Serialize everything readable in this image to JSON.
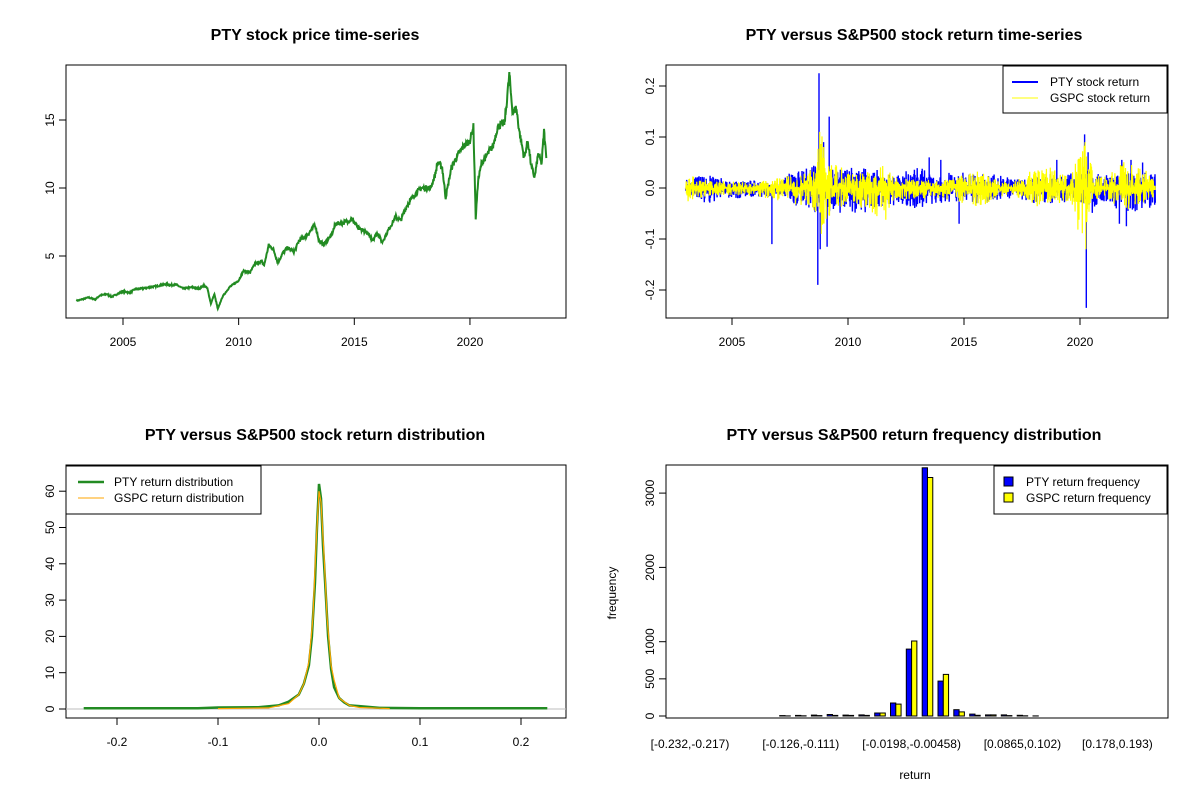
{
  "chart_data": [
    {
      "type": "line",
      "title": "PTY stock price time-series",
      "xlabel": "",
      "ylabel": "",
      "xlim": [
        2002.1,
        2023.9
      ],
      "ylim": [
        0.6,
        18.9
      ],
      "xticks": [
        "2005",
        "2010",
        "2015",
        "2020"
      ],
      "yticks": [
        "5",
        "10",
        "15"
      ],
      "grid": false,
      "color": "#228B22",
      "series": [
        {
          "values": [
            [
              2003.0,
              1.7
            ],
            [
              2003.5,
              1.95
            ],
            [
              2003.8,
              1.8
            ],
            [
              2004.0,
              2.1
            ],
            [
              2004.3,
              2.2
            ],
            [
              2004.5,
              2.0
            ],
            [
              2005.0,
              2.4
            ],
            [
              2005.3,
              2.3
            ],
            [
              2005.5,
              2.55
            ],
            [
              2006.0,
              2.65
            ],
            [
              2006.5,
              2.8
            ],
            [
              2006.9,
              2.95
            ],
            [
              2007.0,
              2.85
            ],
            [
              2007.3,
              2.9
            ],
            [
              2007.6,
              2.6
            ],
            [
              2008.0,
              2.7
            ],
            [
              2008.3,
              2.6
            ],
            [
              2008.5,
              2.85
            ],
            [
              2008.65,
              2.6
            ],
            [
              2008.8,
              1.5
            ],
            [
              2008.95,
              2.2
            ],
            [
              2009.1,
              1.1
            ],
            [
              2009.3,
              2.0
            ],
            [
              2009.6,
              2.7
            ],
            [
              2010.0,
              3.2
            ],
            [
              2010.2,
              3.9
            ],
            [
              2010.5,
              3.8
            ],
            [
              2010.7,
              4.4
            ],
            [
              2011.0,
              4.6
            ],
            [
              2011.1,
              4.3
            ],
            [
              2011.3,
              5.8
            ],
            [
              2011.5,
              5.5
            ],
            [
              2011.7,
              4.5
            ],
            [
              2011.9,
              5.2
            ],
            [
              2012.1,
              5.6
            ],
            [
              2012.4,
              5.3
            ],
            [
              2012.6,
              6.1
            ],
            [
              2013.0,
              6.6
            ],
            [
              2013.3,
              7.3
            ],
            [
              2013.5,
              6.0
            ],
            [
              2013.7,
              5.9
            ],
            [
              2014.0,
              6.5
            ],
            [
              2014.2,
              7.4
            ],
            [
              2014.5,
              7.4
            ],
            [
              2014.9,
              7.7
            ],
            [
              2015.2,
              7.0
            ],
            [
              2015.5,
              6.8
            ],
            [
              2015.8,
              6.2
            ],
            [
              2016.0,
              6.7
            ],
            [
              2016.2,
              6.0
            ],
            [
              2016.5,
              7.0
            ],
            [
              2016.8,
              7.9
            ],
            [
              2017.0,
              7.6
            ],
            [
              2017.3,
              8.8
            ],
            [
              2017.6,
              9.5
            ],
            [
              2017.9,
              10.0
            ],
            [
              2018.3,
              10.0
            ],
            [
              2018.5,
              11.0
            ],
            [
              2018.6,
              11.9
            ],
            [
              2018.8,
              11.5
            ],
            [
              2018.95,
              9.3
            ],
            [
              2019.2,
              11.5
            ],
            [
              2019.5,
              12.5
            ],
            [
              2019.7,
              13.0
            ],
            [
              2020.0,
              13.5
            ],
            [
              2020.15,
              14.5
            ],
            [
              2020.25,
              7.8
            ],
            [
              2020.35,
              10.5
            ],
            [
              2020.5,
              11.8
            ],
            [
              2020.8,
              12.6
            ],
            [
              2021.0,
              13.1
            ],
            [
              2021.2,
              14.5
            ],
            [
              2021.5,
              14.8
            ],
            [
              2021.6,
              16.5
            ],
            [
              2021.7,
              18.3
            ],
            [
              2021.85,
              15.5
            ],
            [
              2022.0,
              15.9
            ],
            [
              2022.15,
              14.0
            ],
            [
              2022.35,
              12.2
            ],
            [
              2022.5,
              13.5
            ],
            [
              2022.65,
              11.6
            ],
            [
              2022.8,
              10.8
            ],
            [
              2022.95,
              12.5
            ],
            [
              2023.1,
              11.8
            ],
            [
              2023.2,
              14.2
            ],
            [
              2023.3,
              12.2
            ]
          ]
        }
      ]
    },
    {
      "type": "line",
      "title": "PTY versus S&P500 stock return time-series",
      "xlabel": "",
      "ylabel": "",
      "xlim": [
        2002.1,
        2023.9
      ],
      "ylim": [
        -0.255,
        0.24
      ],
      "xticks": [
        "2005",
        "2010",
        "2015",
        "2020"
      ],
      "yticks": [
        "-0.2",
        "-0.1",
        "0.0",
        "0.1",
        "0.2"
      ],
      "grid": false,
      "legend": {
        "position": "top-right"
      },
      "series": [
        {
          "name": "PTY stock return",
          "color": "#0000FF",
          "envelope": [
            [
              2003.0,
              0.02,
              -0.02
            ],
            [
              2004.0,
              0.025,
              -0.03
            ],
            [
              2005.0,
              0.015,
              -0.02
            ],
            [
              2006.0,
              0.015,
              -0.02
            ],
            [
              2007.0,
              0.01,
              -0.015
            ],
            [
              2007.5,
              0.03,
              -0.03
            ],
            [
              2008.0,
              0.035,
              -0.04
            ],
            [
              2008.6,
              0.05,
              -0.05
            ],
            [
              2009.5,
              0.04,
              -0.05
            ],
            [
              2010.0,
              0.04,
              -0.05
            ],
            [
              2011.0,
              0.04,
              -0.05
            ],
            [
              2012.0,
              0.03,
              -0.04
            ],
            [
              2013.0,
              0.04,
              -0.04
            ],
            [
              2014.0,
              0.03,
              -0.03
            ],
            [
              2015.0,
              0.03,
              -0.03
            ],
            [
              2016.0,
              0.03,
              -0.03
            ],
            [
              2017.0,
              0.02,
              -0.02
            ],
            [
              2018.0,
              0.02,
              -0.03
            ],
            [
              2019.0,
              0.03,
              -0.03
            ],
            [
              2020.1,
              0.03,
              -0.03
            ],
            [
              2020.5,
              0.04,
              -0.06
            ],
            [
              2021.0,
              0.025,
              -0.03
            ],
            [
              2022.0,
              0.03,
              -0.05
            ],
            [
              2023.2,
              0.03,
              -0.04
            ]
          ],
          "spikes": [
            [
              2006.72,
              -0.11
            ],
            [
              2008.7,
              -0.19
            ],
            [
              2008.75,
              0.225
            ],
            [
              2008.8,
              -0.12
            ],
            [
              2008.95,
              0.09
            ],
            [
              2009.1,
              -0.115
            ],
            [
              2009.19,
              0.14
            ],
            [
              2013.5,
              0.06
            ],
            [
              2014.0,
              0.055
            ],
            [
              2014.79,
              -0.07
            ],
            [
              2019.0,
              0.055
            ],
            [
              2020.2,
              0.105
            ],
            [
              2020.27,
              -0.235
            ],
            [
              2020.35,
              0.07
            ],
            [
              2021.7,
              -0.07
            ],
            [
              2021.8,
              0.055
            ],
            [
              2022.0,
              -0.075
            ],
            [
              2022.2,
              0.055
            ],
            [
              2022.7,
              0.05
            ]
          ]
        },
        {
          "name": "GSPC stock return",
          "color": "#FFFF00",
          "envelope": [
            [
              2003.0,
              0.03,
              -0.03
            ],
            [
              2004.0,
              0.015,
              -0.015
            ],
            [
              2006.0,
              0.012,
              -0.015
            ],
            [
              2007.5,
              0.025,
              -0.03
            ],
            [
              2008.5,
              0.04,
              -0.04
            ],
            [
              2008.8,
              0.11,
              -0.09
            ],
            [
              2009.3,
              0.06,
              -0.05
            ],
            [
              2010.0,
              0.03,
              -0.03
            ],
            [
              2011.6,
              0.045,
              -0.065
            ],
            [
              2012.0,
              0.02,
              -0.025
            ],
            [
              2014.0,
              0.015,
              -0.02
            ],
            [
              2015.6,
              0.035,
              -0.04
            ],
            [
              2016.0,
              0.025,
              -0.03
            ],
            [
              2017.0,
              0.01,
              -0.01
            ],
            [
              2018.1,
              0.04,
              -0.04
            ],
            [
              2018.9,
              0.04,
              -0.03
            ],
            [
              2019.5,
              0.02,
              -0.03
            ],
            [
              2020.2,
              0.09,
              -0.12
            ],
            [
              2020.6,
              0.03,
              -0.03
            ],
            [
              2021.0,
              0.02,
              -0.02
            ],
            [
              2022.0,
              0.055,
              -0.045
            ],
            [
              2023.2,
              0.025,
              -0.02
            ]
          ],
          "spikes": [
            [
              2008.78,
              0.11
            ],
            [
              2008.85,
              -0.09
            ],
            [
              2020.22,
              0.09
            ],
            [
              2020.25,
              -0.12
            ]
          ]
        }
      ]
    },
    {
      "type": "line",
      "title": "PTY versus S&P500 stock return distribution",
      "xlabel": "",
      "ylabel": "",
      "xlim": [
        -0.25,
        0.245
      ],
      "ylim": [
        -2.5,
        65
      ],
      "xticks": [
        "-0.2",
        "-0.1",
        "0.0",
        "0.1",
        "0.2"
      ],
      "yticks": [
        "0",
        "10",
        "20",
        "30",
        "40",
        "50",
        "60"
      ],
      "grid": false,
      "legend": {
        "position": "top-left"
      },
      "baseline_color": "#BEBEBE",
      "series": [
        {
          "name": "PTY return distribution",
          "color": "#228B22",
          "values": [
            [
              -0.233,
              0.2
            ],
            [
              -0.12,
              0.2
            ],
            [
              -0.1,
              0.4
            ],
            [
              -0.06,
              0.5
            ],
            [
              -0.04,
              1
            ],
            [
              -0.03,
              2
            ],
            [
              -0.02,
              4
            ],
            [
              -0.015,
              7
            ],
            [
              -0.01,
              12
            ],
            [
              -0.007,
              20
            ],
            [
              -0.004,
              35
            ],
            [
              -0.002,
              50
            ],
            [
              0,
              62
            ],
            [
              0.002,
              58
            ],
            [
              0.004,
              45
            ],
            [
              0.006,
              35
            ],
            [
              0.009,
              20
            ],
            [
              0.012,
              11
            ],
            [
              0.015,
              6
            ],
            [
              0.02,
              3
            ],
            [
              0.025,
              1.8
            ],
            [
              0.03,
              1
            ],
            [
              0.04,
              0.8
            ],
            [
              0.06,
              0.3
            ],
            [
              0.1,
              0.2
            ],
            [
              0.226,
              0.2
            ]
          ]
        },
        {
          "name": "GSPC return distribution",
          "color": "#FFA500",
          "values": [
            [
              -0.1,
              0.1
            ],
            [
              -0.05,
              0.3
            ],
            [
              -0.03,
              1.5
            ],
            [
              -0.02,
              4
            ],
            [
              -0.015,
              7
            ],
            [
              -0.01,
              13
            ],
            [
              -0.006,
              25
            ],
            [
              -0.003,
              45
            ],
            [
              0,
              60
            ],
            [
              0.002,
              57
            ],
            [
              0.005,
              42
            ],
            [
              0.008,
              25
            ],
            [
              0.012,
              12
            ],
            [
              0.015,
              8
            ],
            [
              0.02,
              3
            ],
            [
              0.03,
              1
            ],
            [
              0.04,
              0.4
            ],
            [
              0.07,
              0.1
            ]
          ]
        }
      ]
    },
    {
      "type": "bar",
      "title": "PTY versus S&P500 return frequency distribution",
      "xlabel": "return",
      "ylabel": "frequency",
      "ylim": [
        0,
        3375
      ],
      "yticks": [
        "0",
        "500",
        "1000",
        "2000",
        "3000"
      ],
      "grid": false,
      "legend": {
        "position": "top-right"
      },
      "bin_count": 30,
      "tick_labels": [
        {
          "bin": 1,
          "label": "[-0.232,-0.217)"
        },
        {
          "bin": 8,
          "label": "[-0.126,-0.111)"
        },
        {
          "bin": 15,
          "label": "[-0.0198,-0.00458)"
        },
        {
          "bin": 22,
          "label": "[0.0865,0.102)"
        },
        {
          "bin": 28,
          "label": "[0.178,0.193)"
        }
      ],
      "series": [
        {
          "name": "PTY return frequency",
          "color": "#0000FF",
          "values": [
            0,
            0,
            0,
            0,
            0,
            0,
            5,
            8,
            12,
            20,
            12,
            15,
            40,
            175,
            900,
            3340,
            470,
            85,
            25,
            15,
            15,
            10,
            1,
            0,
            0,
            0,
            0,
            0,
            0,
            0
          ]
        },
        {
          "name": "GSPC return frequency",
          "color": "#FFFF00",
          "values": [
            0,
            0,
            0,
            0,
            0,
            0,
            1,
            3,
            5,
            8,
            8,
            8,
            40,
            160,
            1010,
            3210,
            560,
            55,
            10,
            15,
            5,
            3,
            0,
            0,
            0,
            0,
            0,
            0,
            0,
            0
          ]
        }
      ]
    }
  ]
}
